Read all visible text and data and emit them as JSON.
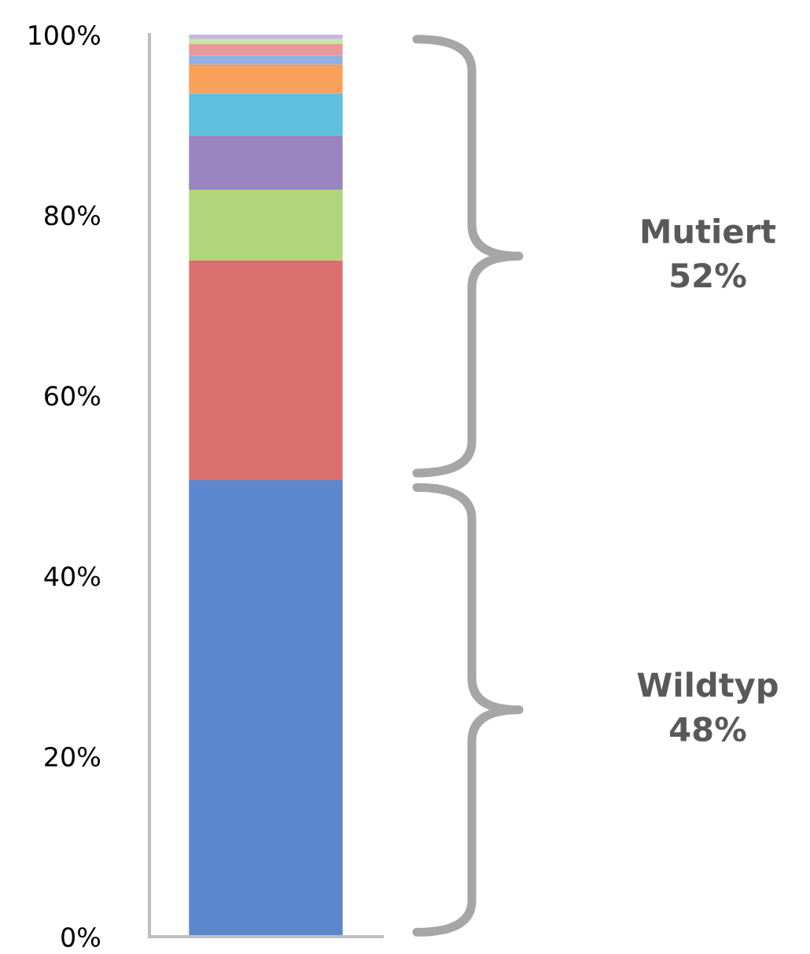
{
  "chart_data": {
    "type": "bar",
    "stacked": true,
    "categories": [
      null
    ],
    "series": [
      {
        "color": "#5b87cf",
        "values": [
          50.6
        ]
      },
      {
        "color": "#d9706f",
        "values": [
          24.4
        ]
      },
      {
        "color": "#b0d67a",
        "values": [
          7.8
        ]
      },
      {
        "color": "#9a84bf",
        "values": [
          6.0
        ]
      },
      {
        "color": "#5ec0dd",
        "values": [
          4.7
        ]
      },
      {
        "color": "#f9a05a",
        "values": [
          3.2
        ]
      },
      {
        "color": "#8fb0e0",
        "values": [
          1.0
        ]
      },
      {
        "color": "#e89a9a",
        "values": [
          1.3
        ]
      },
      {
        "color": "#c8e6a0",
        "values": [
          0.5
        ]
      },
      {
        "color": "#c8b8e4",
        "values": [
          0.5
        ]
      }
    ],
    "ylim": [
      0,
      100
    ],
    "yticks": [
      {
        "value": 0,
        "label": "0%"
      },
      {
        "value": 20,
        "label": "20%"
      },
      {
        "value": 40,
        "label": "40%"
      },
      {
        "value": 60,
        "label": "60%"
      },
      {
        "value": 80,
        "label": "80%"
      },
      {
        "value": 100,
        "label": "100%"
      }
    ],
    "tick_labels": "y",
    "annotations": [
      "Mutiert\n52%",
      "Wildtyp\n48%"
    ]
  }
}
